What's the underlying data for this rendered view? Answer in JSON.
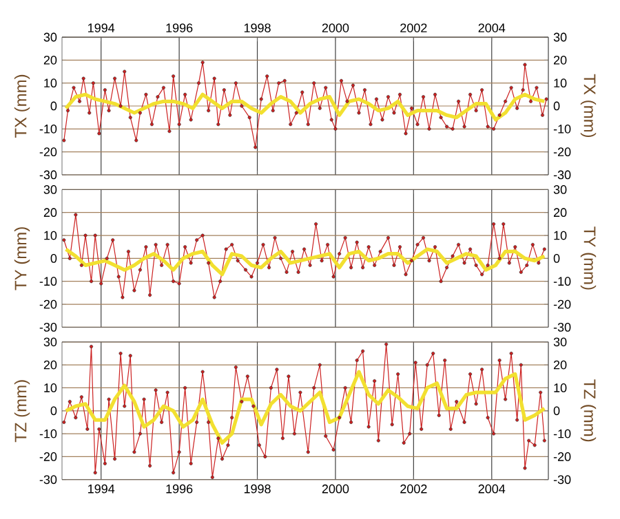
{
  "chart_data": [
    {
      "type": "line",
      "ylabel": "TX (mm)",
      "y2label": "TX (mm)",
      "xlim": [
        1993.0,
        2005.45
      ],
      "xticks": [
        1994,
        1996,
        1998,
        2000,
        2002,
        2004
      ],
      "x2lim": [
        1993.0,
        2005.45
      ],
      "x2ticks": [
        1994,
        1996,
        1998,
        2000,
        2002,
        2004
      ],
      "ylim": [
        -30,
        30
      ],
      "yticks": [
        -30,
        -20,
        -10,
        0,
        10,
        20,
        30
      ],
      "y2lim": [
        -30,
        30
      ],
      "y2ticks": [
        -30,
        -20,
        -10,
        0,
        10,
        20,
        30
      ],
      "grid": true,
      "tick_labels": "y",
      "series": [
        {
          "color": "#cc2020",
          "marker": "circle",
          "x": [
            1993.05,
            1993.15,
            1993.3,
            1993.45,
            1993.55,
            1993.7,
            1993.8,
            1993.95,
            1994.1,
            1994.2,
            1994.35,
            1994.5,
            1994.6,
            1994.75,
            1994.9,
            1995.0,
            1995.15,
            1995.3,
            1995.45,
            1995.6,
            1995.75,
            1995.85,
            1996.0,
            1996.15,
            1996.3,
            1996.5,
            1996.6,
            1996.75,
            1996.9,
            1997.0,
            1997.15,
            1997.3,
            1997.45,
            1997.6,
            1997.8,
            1997.95,
            1998.1,
            1998.25,
            1998.4,
            1998.55,
            1998.7,
            1998.85,
            1999.0,
            1999.15,
            1999.3,
            1999.45,
            1999.6,
            1999.75,
            1999.9,
            2000.0,
            2000.15,
            2000.3,
            2000.45,
            2000.6,
            2000.75,
            2000.9,
            2001.05,
            2001.2,
            2001.35,
            2001.5,
            2001.65,
            2001.8,
            2001.95,
            2002.1,
            2002.25,
            2002.4,
            2002.55,
            2002.7,
            2002.85,
            2003.0,
            2003.15,
            2003.3,
            2003.45,
            2003.6,
            2003.75,
            2003.9,
            2004.05,
            2004.2,
            2004.35,
            2004.5,
            2004.65,
            2004.8,
            2004.85,
            2005.0,
            2005.15,
            2005.3,
            2005.4
          ],
          "values": [
            -15,
            -2,
            8,
            2,
            12,
            -3,
            10,
            -12,
            7,
            -2,
            12,
            0,
            15,
            -5,
            -15,
            -3,
            5,
            -8,
            4,
            8,
            -11,
            13,
            -8,
            5,
            -6,
            10,
            19,
            -2,
            12,
            -8,
            7,
            -4,
            10,
            0,
            -5,
            -18,
            3,
            13,
            -2,
            10,
            11,
            -8,
            -3,
            6,
            -8,
            10,
            -1,
            8,
            -6,
            -10,
            11,
            2,
            9,
            -3,
            7,
            -8,
            3,
            -6,
            4,
            -3,
            5,
            -12,
            -1,
            -8,
            4,
            -10,
            5,
            -5,
            -9,
            -10,
            2,
            -9,
            5,
            -2,
            7,
            -9,
            -10,
            -4,
            2,
            8,
            -1,
            7,
            18,
            2,
            8,
            -4,
            3
          ]
        },
        {
          "type": "line",
          "color": "#f2e030",
          "marker": "none",
          "x": [
            1993.1,
            1993.35,
            1993.6,
            1993.85,
            1994.1,
            1994.35,
            1994.6,
            1994.85,
            1995.1,
            1995.35,
            1995.6,
            1995.85,
            1996.1,
            1996.35,
            1996.6,
            1996.85,
            1997.1,
            1997.35,
            1997.6,
            1997.85,
            1998.1,
            1998.35,
            1998.6,
            1998.85,
            1999.1,
            1999.35,
            1999.6,
            1999.85,
            2000.1,
            2000.35,
            2000.6,
            2000.85,
            2001.1,
            2001.35,
            2001.6,
            2001.85,
            2002.1,
            2002.35,
            2002.6,
            2002.85,
            2003.1,
            2003.35,
            2003.6,
            2003.85,
            2004.1,
            2004.35,
            2004.6,
            2004.85,
            2005.1,
            2005.35
          ],
          "values": [
            -1,
            4,
            5,
            3,
            2,
            1,
            -1,
            -3,
            -1,
            1,
            2,
            2,
            1,
            -1,
            5,
            2,
            -1,
            2,
            2,
            -1,
            -3,
            1,
            4,
            2,
            -3,
            1,
            3,
            4,
            -4,
            2,
            3,
            1,
            -2,
            -1,
            2,
            -4,
            -2,
            -2,
            -2,
            -4,
            -5,
            -2,
            1,
            1,
            -6,
            -3,
            3,
            5,
            3,
            2
          ]
        }
      ]
    },
    {
      "type": "line",
      "ylabel": "TY (mm)",
      "y2label": "TY (mm)",
      "xlim": [
        1993.0,
        2005.45
      ],
      "xticks": [
        1994,
        1996,
        1998,
        2000,
        2002,
        2004
      ],
      "ylim": [
        -30,
        30
      ],
      "yticks": [
        -30,
        -20,
        -10,
        0,
        10,
        20,
        30
      ],
      "y2lim": [
        -30,
        30
      ],
      "y2ticks": [
        -30,
        -20,
        -10,
        0,
        10,
        20,
        30
      ],
      "grid": true,
      "tick_labels": "y",
      "series": [
        {
          "color": "#cc2020",
          "marker": "circle",
          "x": [
            1993.05,
            1993.2,
            1993.35,
            1993.5,
            1993.6,
            1993.75,
            1993.85,
            1994.0,
            1994.15,
            1994.3,
            1994.45,
            1994.55,
            1994.7,
            1994.85,
            1995.0,
            1995.15,
            1995.25,
            1995.4,
            1995.55,
            1995.7,
            1995.85,
            1996.0,
            1996.15,
            1996.3,
            1996.45,
            1996.6,
            1996.75,
            1996.9,
            1997.05,
            1997.2,
            1997.35,
            1997.5,
            1997.7,
            1997.85,
            1998.0,
            1998.15,
            1998.3,
            1998.45,
            1998.6,
            1998.75,
            1998.9,
            1999.05,
            1999.2,
            1999.35,
            1999.5,
            1999.65,
            1999.8,
            1999.95,
            2000.1,
            2000.25,
            2000.4,
            2000.55,
            2000.7,
            2000.85,
            2001.0,
            2001.15,
            2001.35,
            2001.5,
            2001.65,
            2001.8,
            2001.95,
            2002.1,
            2002.25,
            2002.4,
            2002.55,
            2002.7,
            2002.85,
            2003.0,
            2003.15,
            2003.3,
            2003.45,
            2003.6,
            2003.75,
            2003.9,
            2004.05,
            2004.2,
            2004.3,
            2004.45,
            2004.6,
            2004.75,
            2004.9,
            2005.05,
            2005.2,
            2005.35
          ],
          "values": [
            8,
            0,
            19,
            -3,
            10,
            -10,
            10,
            -11,
            0,
            8,
            -8,
            -17,
            3,
            -14,
            -5,
            5,
            -16,
            6,
            -3,
            6,
            -10,
            -11,
            5,
            -2,
            8,
            10,
            -2,
            -17,
            -10,
            4,
            6,
            -1,
            -5,
            -8,
            -2,
            6,
            -4,
            9,
            0,
            -6,
            3,
            -6,
            4,
            -3,
            15,
            -1,
            6,
            -8,
            2,
            9,
            -4,
            7,
            -4,
            5,
            -3,
            3,
            9,
            -3,
            5,
            -7,
            -1,
            6,
            9,
            -1,
            5,
            -10,
            -4,
            1,
            6,
            -2,
            4,
            -3,
            -7,
            -3,
            15,
            0,
            15,
            -2,
            5,
            -6,
            -3,
            6,
            -2,
            4
          ]
        },
        {
          "type": "line",
          "color": "#f2e030",
          "marker": "none",
          "x": [
            1993.1,
            1993.35,
            1993.6,
            1993.85,
            1994.1,
            1994.35,
            1994.6,
            1994.85,
            1995.1,
            1995.35,
            1995.6,
            1995.85,
            1996.1,
            1996.35,
            1996.6,
            1996.85,
            1997.1,
            1997.35,
            1997.6,
            1997.85,
            1998.1,
            1998.35,
            1998.6,
            1998.85,
            1999.1,
            1999.35,
            1999.6,
            1999.85,
            2000.1,
            2000.35,
            2000.6,
            2000.85,
            2001.1,
            2001.35,
            2001.6,
            2001.85,
            2002.1,
            2002.35,
            2002.6,
            2002.85,
            2003.1,
            2003.35,
            2003.6,
            2003.85,
            2004.1,
            2004.35,
            2004.6,
            2004.85,
            2005.1,
            2005.35
          ],
          "values": [
            4,
            1,
            -3,
            -2,
            -1,
            -3,
            -5,
            -3,
            0,
            2,
            -1,
            -5,
            0,
            2,
            3,
            -3,
            -7,
            2,
            1,
            -3,
            -4,
            0,
            3,
            -2,
            -1,
            0,
            1,
            2,
            -4,
            2,
            3,
            -1,
            0,
            2,
            2,
            -2,
            1,
            4,
            3,
            -2,
            0,
            2,
            1,
            -5,
            -3,
            3,
            3,
            0,
            -1,
            1
          ]
        }
      ]
    },
    {
      "type": "line",
      "ylabel": "TZ (mm)",
      "y2label": "TZ (mm)",
      "xlim": [
        1993.0,
        2005.45
      ],
      "xticks": [
        1994,
        1996,
        1998,
        2000,
        2002,
        2004
      ],
      "ylim": [
        -30,
        30
      ],
      "yticks": [
        -30,
        -20,
        -10,
        0,
        10,
        20,
        30
      ],
      "y2lim": [
        -30,
        30
      ],
      "y2ticks": [
        -30,
        -20,
        -10,
        0,
        10,
        20,
        30
      ],
      "grid": true,
      "series": [
        {
          "color": "#cc2020",
          "marker": "circle",
          "x": [
            1993.05,
            1993.2,
            1993.35,
            1993.5,
            1993.65,
            1993.75,
            1993.85,
            1993.95,
            1994.1,
            1994.2,
            1994.35,
            1994.5,
            1994.6,
            1994.75,
            1994.85,
            1995.0,
            1995.1,
            1995.25,
            1995.4,
            1995.55,
            1995.7,
            1995.85,
            1996.0,
            1996.15,
            1996.3,
            1996.45,
            1996.6,
            1996.75,
            1996.85,
            1997.0,
            1997.1,
            1997.25,
            1997.35,
            1997.45,
            1997.6,
            1997.75,
            1997.9,
            1998.05,
            1998.2,
            1998.35,
            1998.5,
            1998.65,
            1998.8,
            1998.95,
            1999.1,
            1999.3,
            1999.45,
            1999.6,
            1999.75,
            1999.95,
            2000.1,
            2000.25,
            2000.4,
            2000.55,
            2000.7,
            2000.85,
            2001.0,
            2001.1,
            2001.3,
            2001.45,
            2001.6,
            2001.75,
            2001.9,
            2002.05,
            2002.2,
            2002.35,
            2002.5,
            2002.65,
            2002.8,
            2002.95,
            2003.1,
            2003.3,
            2003.45,
            2003.6,
            2003.75,
            2003.9,
            2004.05,
            2004.2,
            2004.35,
            2004.5,
            2004.65,
            2004.75,
            2004.85,
            2004.95,
            2005.1,
            2005.25,
            2005.35
          ],
          "values": [
            -5,
            4,
            -3,
            6,
            -8,
            28,
            -27,
            -8,
            -23,
            5,
            -21,
            25,
            2,
            24,
            -18,
            -10,
            5,
            -24,
            9,
            -5,
            8,
            -27,
            -18,
            10,
            -23,
            -5,
            17,
            -5,
            -29,
            -12,
            -21,
            -15,
            -3,
            19,
            4,
            15,
            2,
            -15,
            -20,
            10,
            18,
            -12,
            15,
            -10,
            8,
            -18,
            10,
            20,
            -11,
            -17,
            -3,
            10,
            -5,
            22,
            26,
            -7,
            13,
            -13,
            29,
            -6,
            16,
            -14,
            -10,
            21,
            -8,
            20,
            25,
            -2,
            22,
            -8,
            4,
            -5,
            16,
            3,
            18,
            -3,
            -10,
            22,
            5,
            25,
            -4,
            20,
            -25,
            -13,
            -15,
            8,
            -13
          ]
        },
        {
          "type": "line",
          "color": "#f2e030",
          "marker": "none",
          "x": [
            1993.1,
            1993.35,
            1993.6,
            1993.85,
            1994.1,
            1994.35,
            1994.6,
            1994.85,
            1995.1,
            1995.35,
            1995.6,
            1995.85,
            1996.1,
            1996.35,
            1996.6,
            1996.85,
            1997.1,
            1997.35,
            1997.6,
            1997.85,
            1998.1,
            1998.35,
            1998.6,
            1998.85,
            1999.1,
            1999.35,
            1999.6,
            1999.85,
            2000.1,
            2000.35,
            2000.6,
            2000.85,
            2001.1,
            2001.35,
            2001.6,
            2001.85,
            2002.1,
            2002.35,
            2002.6,
            2002.85,
            2003.1,
            2003.35,
            2003.6,
            2003.85,
            2004.1,
            2004.35,
            2004.6,
            2004.85,
            2005.1,
            2005.35
          ],
          "values": [
            0,
            2,
            3,
            -4,
            -4,
            5,
            11,
            4,
            -7,
            -4,
            2,
            0,
            -7,
            -4,
            5,
            -6,
            -14,
            -10,
            5,
            5,
            -6,
            3,
            7,
            2,
            0,
            4,
            8,
            -5,
            -3,
            7,
            17,
            7,
            3,
            9,
            6,
            2,
            1,
            10,
            12,
            1,
            1,
            7,
            8,
            8,
            8,
            14,
            16,
            -4,
            -2,
            1
          ]
        }
      ]
    }
  ]
}
